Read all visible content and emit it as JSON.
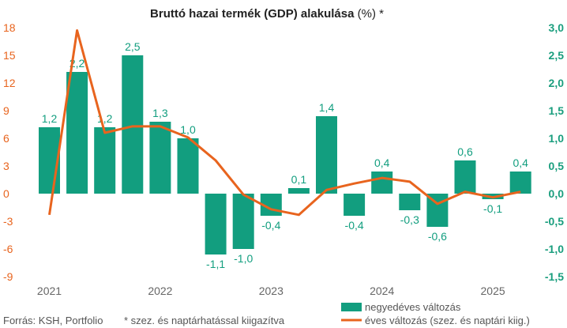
{
  "chart_data": {
    "type": "bar",
    "title_main": "Bruttó hazai termék (GDP) alakulása",
    "title_suffix": " (%) *",
    "source": "Forrás: KSH, Portfolio",
    "footnote": "* szez. és naptárhatással kiigazítva",
    "x_tick_labels": [
      "2021",
      "2022",
      "2023",
      "2024",
      "2025"
    ],
    "x_tick_index": [
      0,
      4,
      8,
      12,
      16
    ],
    "left_axis": {
      "ylim": [
        -9,
        18
      ],
      "ticks": [
        18,
        15,
        12,
        9,
        6,
        3,
        0,
        -3,
        -6,
        -9
      ],
      "tick_labels": [
        "18",
        "15",
        "12",
        "9",
        "6",
        "3",
        "0",
        "-3",
        "-6",
        "-9"
      ],
      "color": "#E8641E"
    },
    "right_axis": {
      "ylim": [
        -1.5,
        3.0
      ],
      "ticks": [
        3.0,
        2.5,
        2.0,
        1.5,
        1.0,
        0.5,
        0.0,
        -0.5,
        -1.0,
        -1.5
      ],
      "tick_labels": [
        "3,0",
        "2,5",
        "2,0",
        "1,5",
        "1,0",
        "0,5",
        "0,0",
        "-0,5",
        "-1,0",
        "-1,5"
      ],
      "color": "#1A9E7E"
    },
    "series": [
      {
        "name": "negyedéves változás",
        "type": "bar",
        "axis": "right",
        "color": "#129E7F",
        "values": [
          1.2,
          2.2,
          1.2,
          2.5,
          1.3,
          1.0,
          -1.1,
          -1.0,
          -0.4,
          0.1,
          1.4,
          -0.4,
          0.4,
          -0.3,
          -0.6,
          0.6,
          -0.1,
          0.4
        ],
        "labels": [
          "1,2",
          "2,2",
          "1,2",
          "2,5",
          "1,3",
          "1,0",
          "-1,1",
          "-1,0",
          "-0,4",
          "0,1",
          "1,4",
          "-0,4",
          "0,4",
          "-0,3",
          "-0,6",
          "0,6",
          "-0,1",
          "0,4"
        ]
      },
      {
        "name": "éves változás (szez. és naptári kiig.)",
        "type": "line",
        "axis": "left",
        "color": "#E8641E",
        "values": [
          -2.3,
          17.7,
          6.6,
          7.3,
          7.3,
          6.1,
          3.6,
          -0.1,
          -1.7,
          -2.3,
          0.4,
          1.1,
          1.7,
          1.3,
          -1.1,
          0.2,
          -0.4,
          0.2
        ]
      }
    ],
    "grid": false,
    "legend_position": "bottom-right"
  }
}
